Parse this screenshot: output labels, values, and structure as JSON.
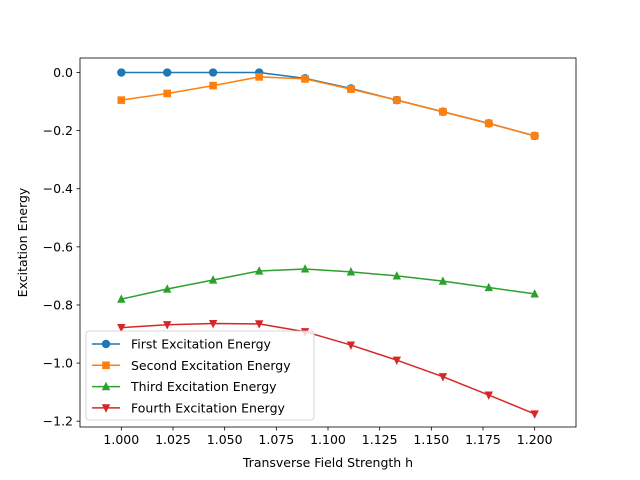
{
  "chart_data": {
    "type": "line",
    "title": "",
    "xlabel": "Transverse Field Strength h",
    "ylabel": "Excitation Energy",
    "xlim": [
      0.98,
      1.22
    ],
    "ylim": [
      -1.22,
      0.05
    ],
    "xticks": [
      1.0,
      1.025,
      1.05,
      1.075,
      1.1,
      1.125,
      1.15,
      1.175,
      1.2
    ],
    "xtick_labels": [
      "1.000",
      "1.025",
      "1.050",
      "1.075",
      "1.100",
      "1.125",
      "1.150",
      "1.175",
      "1.200"
    ],
    "yticks": [
      0.0,
      -0.2,
      -0.4,
      -0.6,
      -0.8,
      -1.0,
      -1.2
    ],
    "ytick_labels": [
      "0.0",
      "−0.2",
      "−0.4",
      "−0.6",
      "−0.8",
      "−1.0",
      "−1.2"
    ],
    "grid": false,
    "legend_position": "lower-left",
    "x": [
      1.0,
      1.0222,
      1.0444,
      1.0667,
      1.0889,
      1.1111,
      1.1333,
      1.1556,
      1.1778,
      1.2
    ],
    "series": [
      {
        "name": "First Excitation Energy",
        "color": "#1f77b4",
        "marker": "circle",
        "values": [
          0.0,
          0.0,
          0.0,
          0.0,
          -0.02,
          -0.055,
          -0.095,
          -0.135,
          -0.175,
          -0.218
        ]
      },
      {
        "name": "Second Excitation Energy",
        "color": "#ff7f0e",
        "marker": "square",
        "values": [
          -0.095,
          -0.072,
          -0.045,
          -0.015,
          -0.022,
          -0.057,
          -0.095,
          -0.135,
          -0.175,
          -0.218
        ]
      },
      {
        "name": "Third Excitation Energy",
        "color": "#2ca02c",
        "marker": "triangle-up",
        "values": [
          -0.78,
          -0.745,
          -0.714,
          -0.683,
          -0.676,
          -0.686,
          -0.7,
          -0.718,
          -0.74,
          -0.762
        ]
      },
      {
        "name": "Fourth Excitation Energy",
        "color": "#d62728",
        "marker": "triangle-down",
        "values": [
          -0.878,
          -0.868,
          -0.864,
          -0.865,
          -0.892,
          -0.938,
          -0.99,
          -1.047,
          -1.11,
          -1.175
        ]
      }
    ]
  }
}
